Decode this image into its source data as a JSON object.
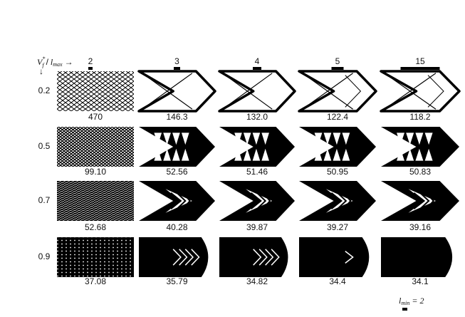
{
  "corner_label": {
    "row_var": "V",
    "row_var_sub": "f",
    "row_var_sup": "*",
    "separator": "/",
    "col_var": "l",
    "col_var_sub": "max",
    "right_arrow": "→",
    "down_arrow": "↓"
  },
  "columns": [
    "2",
    "3",
    "4",
    "5",
    "15"
  ],
  "rows": [
    {
      "label": "0.2",
      "values": [
        "470",
        "146.3",
        "132.0",
        "122.4",
        "118.2"
      ]
    },
    {
      "label": "0.5",
      "values": [
        "99.10",
        "52.56",
        "51.46",
        "50.95",
        "50.83"
      ]
    },
    {
      "label": "0.7",
      "values": [
        "52.68",
        "40.28",
        "39.87",
        "39.27",
        "39.16"
      ]
    },
    {
      "label": "0.9",
      "values": [
        "37.08",
        "35.79",
        "34.82",
        "34.4",
        "34.1"
      ]
    }
  ],
  "footer": {
    "var": "l",
    "var_sub": "min",
    "equals": "= 2"
  }
}
